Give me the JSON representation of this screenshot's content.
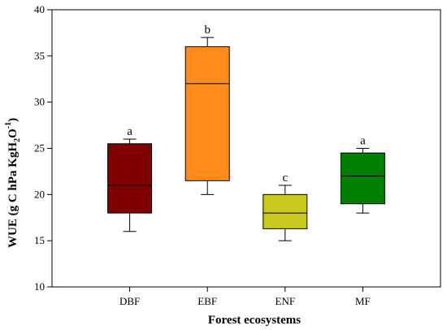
{
  "chart_data": {
    "type": "boxplot",
    "xlabel": "Forest ecosystems",
    "ylabel_parts": {
      "p1": "WUE (g C hPa KgH",
      "sub": "2",
      "p2": "O",
      "sup": "-1",
      "p3": ")"
    },
    "ylim": [
      10,
      40
    ],
    "yticks": [
      10,
      15,
      20,
      25,
      30,
      35,
      40
    ],
    "categories": [
      "DBF",
      "EBF",
      "ENF",
      "MF"
    ],
    "boxes": [
      {
        "category": "DBF",
        "min": 16,
        "q1": 18,
        "median": 21,
        "q3": 25.5,
        "max": 26,
        "color": "#800000",
        "label": "a"
      },
      {
        "category": "EBF",
        "min": 20,
        "q1": 21.5,
        "median": 32,
        "q3": 36,
        "max": 37,
        "color": "#ff8c1a",
        "label": "b"
      },
      {
        "category": "ENF",
        "min": 15,
        "q1": 16.3,
        "median": 18,
        "q3": 20,
        "max": 21,
        "color": "#c8c81e",
        "label": "c"
      },
      {
        "category": "MF",
        "min": 18,
        "q1": 19,
        "median": 22,
        "q3": 24.5,
        "max": 25,
        "color": "#008000",
        "label": "a"
      }
    ],
    "grid": false
  }
}
